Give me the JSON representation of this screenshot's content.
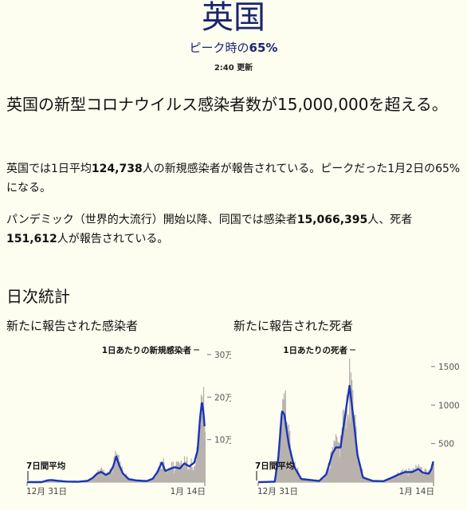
{
  "header": {
    "country": "英国",
    "peak_prefix": "ピーク時の",
    "peak_pct": "65%",
    "updated": "2:40 更新"
  },
  "headline": "英国の新型コロナウイルス感染者数が15,000,000を超える。",
  "para1": {
    "a": "英国では1日平均",
    "num": "124,738",
    "b": "人の新規感染者が報告されている。ピークだった1月2日の65%になる。"
  },
  "para2": {
    "a": "パンデミック（世界的大流行）開始以降、同国では感染者",
    "cases": "15,066,395",
    "b": "人、死者",
    "deaths": "151,612",
    "c": "人が報告されている。"
  },
  "section_title": "日次統計",
  "colors": {
    "bar": "#b9b2ac",
    "line": "#1a34b8",
    "title": "#1b2470"
  },
  "chart_data": [
    {
      "type": "bar",
      "title": "新たに報告された感染者",
      "annotation": "1日あたりの新規感染者",
      "avg_label": "7日間平均",
      "x_labels": [
        "12月 31日",
        "1月 14日"
      ],
      "y_ticks": [
        {
          "v": 100000,
          "label": "10万"
        },
        {
          "v": 200000,
          "label": "20万"
        },
        {
          "v": 300000,
          "label": "30万"
        }
      ],
      "ylim": [
        0,
        330000
      ],
      "x_range": [
        "2019-12-31",
        "2022-01-14"
      ],
      "avg_points": [
        [
          "2019-12-31",
          0
        ],
        [
          "2020-03-01",
          50
        ],
        [
          "2020-03-25",
          4000
        ],
        [
          "2020-04-10",
          5000
        ],
        [
          "2020-05-10",
          3000
        ],
        [
          "2020-06-15",
          1200
        ],
        [
          "2020-08-01",
          800
        ],
        [
          "2020-09-10",
          3000
        ],
        [
          "2020-10-01",
          10000
        ],
        [
          "2020-10-20",
          20000
        ],
        [
          "2020-11-05",
          24000
        ],
        [
          "2020-11-25",
          17000
        ],
        [
          "2020-12-10",
          21000
        ],
        [
          "2020-12-25",
          36000
        ],
        [
          "2021-01-08",
          60000
        ],
        [
          "2021-01-20",
          40000
        ],
        [
          "2021-02-05",
          20000
        ],
        [
          "2021-03-01",
          7000
        ],
        [
          "2021-04-01",
          4000
        ],
        [
          "2021-05-15",
          2500
        ],
        [
          "2021-06-10",
          8000
        ],
        [
          "2021-07-01",
          25000
        ],
        [
          "2021-07-18",
          47000
        ],
        [
          "2021-08-01",
          26000
        ],
        [
          "2021-08-20",
          31000
        ],
        [
          "2021-09-10",
          35000
        ],
        [
          "2021-10-01",
          32000
        ],
        [
          "2021-10-20",
          44000
        ],
        [
          "2021-11-10",
          37000
        ],
        [
          "2021-12-01",
          46000
        ],
        [
          "2021-12-15",
          75000
        ],
        [
          "2021-12-25",
          150000
        ],
        [
          "2022-01-02",
          190000
        ],
        [
          "2022-01-08",
          165000
        ],
        [
          "2022-01-14",
          124738
        ]
      ]
    },
    {
      "type": "bar",
      "title": "新たに報告された死者",
      "annotation": "1日あたりの死者",
      "avg_label": "7日間平均",
      "x_labels": [
        "12月 31日",
        "1月 14日"
      ],
      "y_ticks": [
        {
          "v": 500,
          "label": "500"
        },
        {
          "v": 1000,
          "label": "1000"
        },
        {
          "v": 1500,
          "label": "1500"
        }
      ],
      "ylim": [
        0,
        1820
      ],
      "x_range": [
        "2019-12-31",
        "2022-01-14"
      ],
      "avg_points": [
        [
          "2019-12-31",
          0
        ],
        [
          "2020-03-10",
          5
        ],
        [
          "2020-03-25",
          300
        ],
        [
          "2020-04-10",
          920
        ],
        [
          "2020-04-20",
          880
        ],
        [
          "2020-05-10",
          470
        ],
        [
          "2020-06-01",
          200
        ],
        [
          "2020-07-01",
          40
        ],
        [
          "2020-09-15",
          15
        ],
        [
          "2020-10-15",
          100
        ],
        [
          "2020-11-10",
          370
        ],
        [
          "2020-11-25",
          450
        ],
        [
          "2020-12-15",
          450
        ],
        [
          "2021-01-05",
          900
        ],
        [
          "2021-01-22",
          1250
        ],
        [
          "2021-02-05",
          900
        ],
        [
          "2021-02-25",
          350
        ],
        [
          "2021-03-20",
          60
        ],
        [
          "2021-05-01",
          15
        ],
        [
          "2021-06-15",
          12
        ],
        [
          "2021-07-15",
          50
        ],
        [
          "2021-08-20",
          100
        ],
        [
          "2021-09-15",
          130
        ],
        [
          "2021-10-15",
          130
        ],
        [
          "2021-11-10",
          170
        ],
        [
          "2021-12-01",
          120
        ],
        [
          "2021-12-25",
          110
        ],
        [
          "2022-01-05",
          170
        ],
        [
          "2022-01-14",
          280
        ]
      ]
    }
  ]
}
